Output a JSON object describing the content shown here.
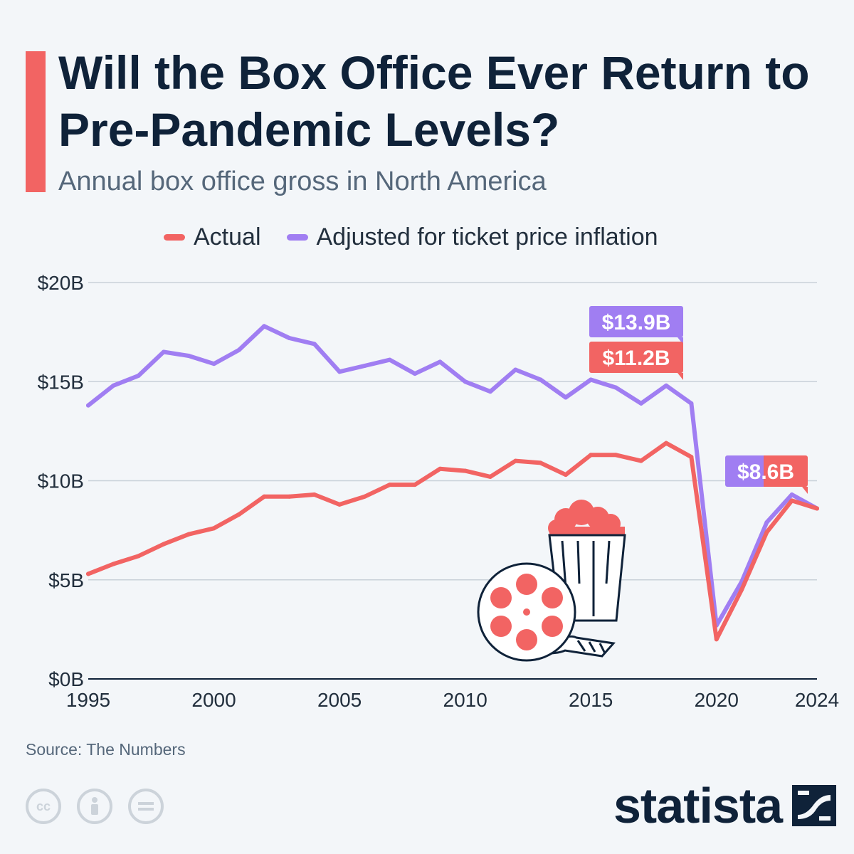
{
  "header": {
    "title": "Will the Box Office Ever Return to Pre-Pandemic Levels?",
    "subtitle": "Annual box office gross in North America"
  },
  "legend": [
    {
      "label": "Actual",
      "color": "#f26463"
    },
    {
      "label": "Adjusted for ticket price inflation",
      "color": "#a07ef2"
    }
  ],
  "callouts": {
    "adjusted_2019": "$13.9B",
    "actual_2019": "$11.2B",
    "latest_2024": "$8.6B"
  },
  "footer": {
    "source": "Source: The Numbers",
    "brand": "statista"
  },
  "chart_data": {
    "type": "line",
    "title": "Will the Box Office Ever Return to Pre-Pandemic Levels?",
    "subtitle": "Annual box office gross in North America",
    "x": [
      1995,
      1996,
      1997,
      1998,
      1999,
      2000,
      2001,
      2002,
      2003,
      2004,
      2005,
      2006,
      2007,
      2008,
      2009,
      2010,
      2011,
      2012,
      2013,
      2014,
      2015,
      2016,
      2017,
      2018,
      2019,
      2020,
      2021,
      2022,
      2023,
      2024
    ],
    "series": [
      {
        "name": "Actual",
        "color": "#f26463",
        "values": [
          5.3,
          5.8,
          6.2,
          6.8,
          7.3,
          7.6,
          8.3,
          9.2,
          9.2,
          9.3,
          8.8,
          9.2,
          9.8,
          9.8,
          10.6,
          10.5,
          10.2,
          11.0,
          10.9,
          10.3,
          11.3,
          11.3,
          11.0,
          11.9,
          11.2,
          2.0,
          4.5,
          7.4,
          9.0,
          8.6
        ]
      },
      {
        "name": "Adjusted for ticket price inflation",
        "color": "#a07ef2",
        "values": [
          13.8,
          14.8,
          15.3,
          16.5,
          16.3,
          15.9,
          16.6,
          17.8,
          17.2,
          16.9,
          15.5,
          15.8,
          16.1,
          15.4,
          16.0,
          15.0,
          14.5,
          15.6,
          15.1,
          14.2,
          15.1,
          14.7,
          13.9,
          14.8,
          13.9,
          2.7,
          4.9,
          7.9,
          9.3,
          8.6
        ]
      }
    ],
    "x_ticks": [
      "1995",
      "2000",
      "2005",
      "2010",
      "2015",
      "2020",
      "2024"
    ],
    "y_ticks": [
      "$0B",
      "$5B",
      "$10B",
      "$15B",
      "$20B"
    ],
    "ylim": [
      0,
      20
    ],
    "xlim": [
      1995,
      2024
    ],
    "grid": true,
    "legend_position": "top-center"
  }
}
